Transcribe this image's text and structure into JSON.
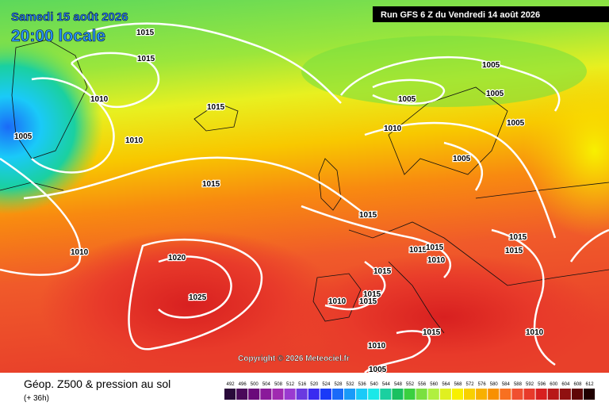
{
  "header": {
    "date": "Samedi 15 août 2026",
    "time": "20:00 locale",
    "run": "Run GFS 6 Z du Vendredi 14 août 2026"
  },
  "isobar_labels": [
    1015,
    1015,
    1010,
    1005,
    1010,
    1015,
    1015,
    1010,
    1020,
    1025,
    1005,
    1005,
    1005,
    1005,
    1010,
    1005,
    1015,
    1015,
    1015,
    1015,
    1015,
    1010,
    1015,
    1015,
    1015,
    1010,
    1015,
    1010,
    1005,
    1010
  ],
  "copyright": "Copyright © 2026 Meteociel.fr",
  "footer": {
    "title": "Géop. Z500 & pression au sol",
    "lead": "(+ 36h)"
  },
  "colorbar": {
    "ticks": [
      492,
      496,
      500,
      504,
      508,
      512,
      516,
      520,
      524,
      528,
      532,
      536,
      540,
      544,
      548,
      552,
      556,
      560,
      564,
      568,
      572,
      576,
      580,
      584,
      588,
      592,
      596,
      600,
      604,
      608,
      612
    ],
    "colors": [
      "#2a0a3a",
      "#4a0a5a",
      "#6a0a7a",
      "#8a1a9a",
      "#a02ab0",
      "#9a3ad0",
      "#6a3ae0",
      "#3a2af0",
      "#1a3af8",
      "#1a6af8",
      "#1a9af8",
      "#1acaf8",
      "#1ae8e8",
      "#1ad0a0",
      "#1ac060",
      "#3ad040",
      "#7ae040",
      "#b0f040",
      "#e0f020",
      "#f8f000",
      "#f8d000",
      "#f8b000",
      "#f89000",
      "#f87020",
      "#f05030",
      "#e83a2a",
      "#d82020",
      "#b81818",
      "#901010",
      "#600808",
      "#200000"
    ]
  }
}
